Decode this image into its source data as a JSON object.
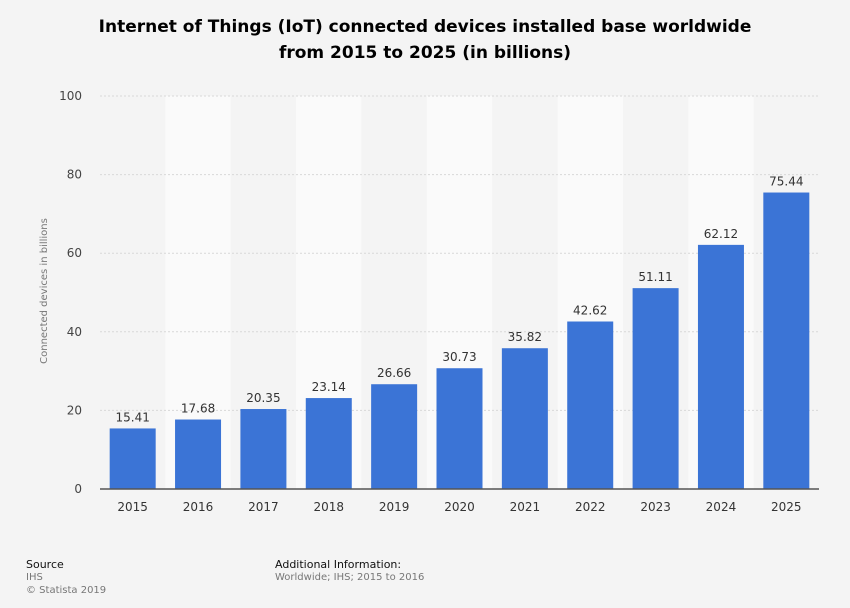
{
  "title_line1": "Internet of Things (IoT) connected devices installed base worldwide",
  "title_line2": "from 2015 to 2025 (in billions)",
  "footer": {
    "source_label": "Source",
    "source_value": "IHS",
    "copyright": "© Statista 2019",
    "additional_label": "Additional Information:",
    "additional_value": "Worldwide; IHS; 2015 to 2016"
  },
  "colors": {
    "bar": "#3b74d6",
    "band": "#fafafa",
    "grid": "#d8d8d8",
    "background": "#f4f4f4"
  },
  "chart_data": {
    "type": "bar",
    "title": "Internet of Things (IoT) connected devices installed base worldwide from 2015 to 2025 (in billions)",
    "xlabel": "",
    "ylabel": "Connected devices in billions",
    "categories": [
      "2015",
      "2016",
      "2017",
      "2018",
      "2019",
      "2020",
      "2021",
      "2022",
      "2023",
      "2024",
      "2025"
    ],
    "values": [
      15.41,
      17.68,
      20.35,
      23.14,
      26.66,
      30.73,
      35.82,
      42.62,
      51.11,
      62.12,
      75.44
    ],
    "value_labels": [
      "15.41",
      "17.68",
      "20.35",
      "23.14",
      "26.66",
      "30.73",
      "35.82",
      "42.62",
      "51.11",
      "62.12",
      "75.44"
    ],
    "ylim": [
      0,
      100
    ],
    "yticks": [
      0,
      20,
      40,
      60,
      80,
      100
    ],
    "grid": true,
    "legend": "none"
  }
}
